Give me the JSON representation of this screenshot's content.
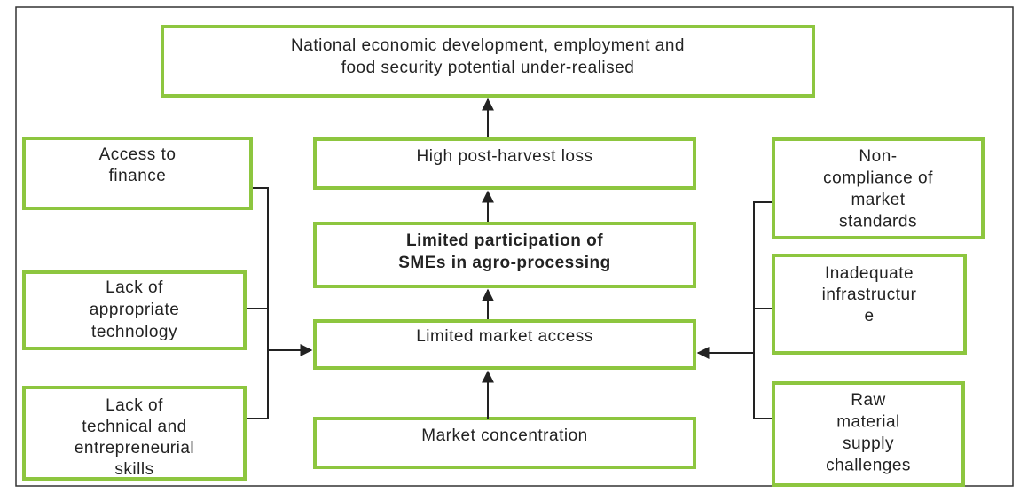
{
  "nodes": [
    {
      "lines": [
        "National economic development, employment and",
        "food security potential under-realised"
      ]
    },
    {
      "lines": [
        "High post-harvest loss"
      ]
    },
    {
      "lines": [
        "Limited participation of",
        "SMEs in agro-processing"
      ]
    },
    {
      "lines": [
        "Limited market access"
      ]
    },
    {
      "lines": [
        "Market concentration"
      ]
    },
    {
      "lines": [
        "Access to",
        "finance"
      ]
    },
    {
      "lines": [
        "Lack of",
        "appropriate",
        "technology"
      ]
    },
    {
      "lines": [
        "Lack of",
        "technical and",
        "entrepreneurial",
        "skills"
      ]
    },
    {
      "lines": [
        "Non-",
        "compliance of",
        "market",
        "standards"
      ]
    },
    {
      "lines": [
        "Inadequate",
        "infrastructur",
        "e"
      ]
    },
    {
      "lines": [
        "Raw",
        "material",
        "supply",
        "challenges"
      ]
    }
  ]
}
